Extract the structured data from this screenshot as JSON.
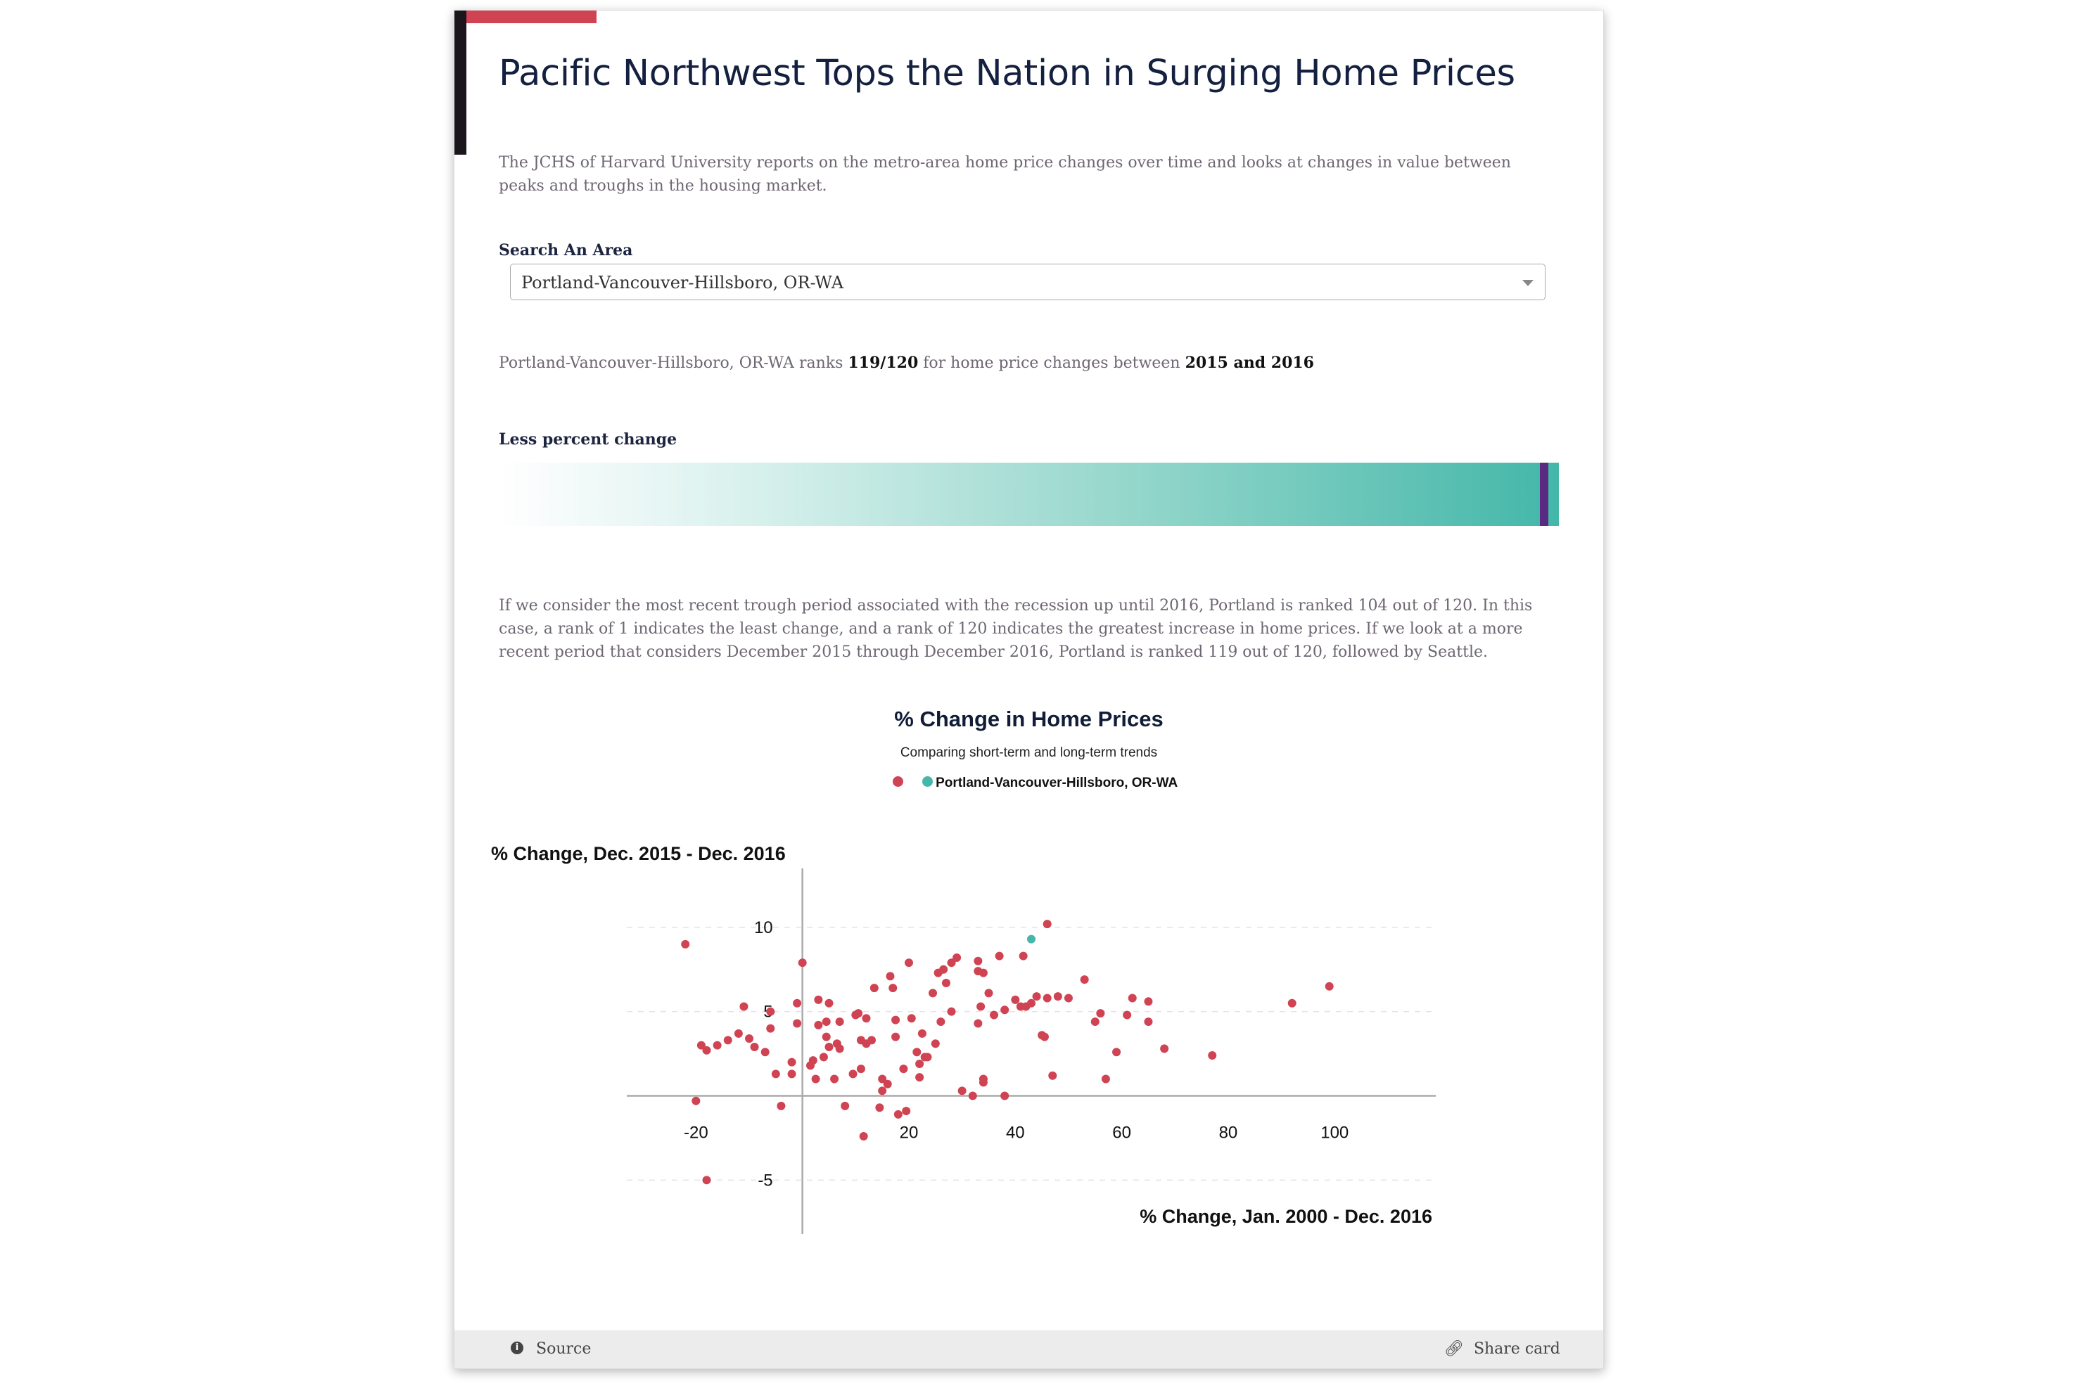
{
  "card": {
    "title": "Pacific Northwest Tops the Nation in Surging Home Prices",
    "intro": "The JCHS of Harvard University reports on the metro-area home price changes over time and looks at changes in value between peaks and troughs in the housing market."
  },
  "search": {
    "label": "Search An Area",
    "selected": "Portland-Vancouver-Hillsboro, OR-WA"
  },
  "rank": {
    "area": "Portland-Vancouver-Hillsboro, OR-WA",
    "ranks_text": "ranks",
    "rank": "119/120",
    "for_text": "for home price changes between",
    "period": "2015 and 2016"
  },
  "bar": {
    "label": "Less percent change",
    "marker_fraction": 0.99,
    "marker_color": "#5a2a82"
  },
  "body_text": "If we consider the most recent trough period associated with the recession up until 2016, Portland is ranked 104 out of 120. In this case, a rank of 1 indicates the least change, and a rank of 120 indicates the greatest increase in home prices. If we look at a more recent period that considers December 2015 through December 2016, Portland is ranked 119 out of 120, followed by Seattle.",
  "chart_data": {
    "type": "scatter",
    "title": "% Change in Home Prices",
    "subtitle": "Comparing short-term and long-term trends",
    "xlabel": "% Change, Jan. 2000 - Dec. 2016",
    "ylabel": "% Change, Dec. 2015 - Dec. 2016",
    "xlim": [
      -33,
      119
    ],
    "ylim": [
      -8.2,
      13.5
    ],
    "x_ticks": [
      -20,
      20,
      40,
      60,
      80,
      100
    ],
    "y_ticks": [
      -5,
      5,
      10
    ],
    "grid": "horizontal dashed",
    "legend_position": "top-center",
    "series": [
      {
        "name": "",
        "color": "#d04352",
        "points": [
          [
            -22,
            9
          ],
          [
            -20,
            -0.3
          ],
          [
            -18,
            -5
          ],
          [
            -19,
            3
          ],
          [
            -18,
            2.7
          ],
          [
            -16,
            3
          ],
          [
            -14,
            3.3
          ],
          [
            -12,
            3.7
          ],
          [
            -11,
            5.3
          ],
          [
            -10,
            3.4
          ],
          [
            -9,
            2.9
          ],
          [
            -7,
            2.6
          ],
          [
            -6,
            4
          ],
          [
            -6,
            5
          ],
          [
            -5,
            1.3
          ],
          [
            -4,
            -0.6
          ],
          [
            -2,
            2
          ],
          [
            -2,
            1.3
          ],
          [
            -1,
            5.5
          ],
          [
            -1,
            4.3
          ],
          [
            0,
            7.9
          ],
          [
            1.5,
            1.8
          ],
          [
            2,
            2.1
          ],
          [
            2.5,
            1
          ],
          [
            3,
            4.2
          ],
          [
            3,
            5.7
          ],
          [
            4,
            2.3
          ],
          [
            4.5,
            3.5
          ],
          [
            4.5,
            4.4
          ],
          [
            5,
            2.9
          ],
          [
            5,
            5.5
          ],
          [
            6,
            1
          ],
          [
            6.5,
            3.1
          ],
          [
            7,
            2.8
          ],
          [
            7,
            4.4
          ],
          [
            8,
            -0.6
          ],
          [
            9.5,
            1.3
          ],
          [
            10,
            4.8
          ],
          [
            10.5,
            4.9
          ],
          [
            11,
            3.3
          ],
          [
            11,
            1.6
          ],
          [
            11.5,
            -2.4
          ],
          [
            12,
            3.1
          ],
          [
            12,
            4.6
          ],
          [
            13,
            3.3
          ],
          [
            13.5,
            6.4
          ],
          [
            14.5,
            -0.7
          ],
          [
            15,
            1
          ],
          [
            15,
            0.3
          ],
          [
            16,
            0.7
          ],
          [
            16.5,
            7.1
          ],
          [
            17,
            6.4
          ],
          [
            17.5,
            4.5
          ],
          [
            17.5,
            3.5
          ],
          [
            18,
            -1.1
          ],
          [
            19,
            1.6
          ],
          [
            19.5,
            -0.9
          ],
          [
            20,
            7.9
          ],
          [
            20.5,
            4.6
          ],
          [
            21.5,
            2.6
          ],
          [
            22,
            1.9
          ],
          [
            23,
            2.3
          ],
          [
            22.5,
            3.7
          ],
          [
            22,
            1.1
          ],
          [
            23.5,
            2.3
          ],
          [
            24.5,
            6.1
          ],
          [
            25,
            3.1
          ],
          [
            25.5,
            7.3
          ],
          [
            26,
            4.4
          ],
          [
            26.5,
            7.5
          ],
          [
            27,
            6.7
          ],
          [
            28,
            5
          ],
          [
            28,
            7.9
          ],
          [
            29,
            8.2
          ],
          [
            30,
            0.3
          ],
          [
            32,
            0
          ],
          [
            33,
            4.3
          ],
          [
            33,
            8
          ],
          [
            33,
            7.4
          ],
          [
            33.5,
            5.3
          ],
          [
            34,
            1
          ],
          [
            34,
            0.8
          ],
          [
            34,
            7.3
          ],
          [
            35,
            6.1
          ],
          [
            36,
            4.8
          ],
          [
            37,
            8.3
          ],
          [
            38,
            0
          ],
          [
            38,
            5.1
          ],
          [
            40,
            5.7
          ],
          [
            41,
            5.3
          ],
          [
            41.5,
            8.3
          ],
          [
            42,
            5.3
          ],
          [
            43,
            5.5
          ],
          [
            44,
            5.9
          ],
          [
            45,
            3.6
          ],
          [
            45.5,
            3.5
          ],
          [
            46,
            5.8
          ],
          [
            47,
            1.2
          ],
          [
            48,
            5.9
          ],
          [
            50,
            5.8
          ],
          [
            53,
            6.9
          ],
          [
            55,
            4.4
          ],
          [
            56,
            4.9
          ],
          [
            57,
            1
          ],
          [
            59,
            2.6
          ],
          [
            61,
            4.8
          ],
          [
            62,
            5.8
          ],
          [
            65,
            5.6
          ],
          [
            65,
            4.4
          ],
          [
            68,
            2.8
          ],
          [
            77,
            2.4
          ],
          [
            92,
            5.5
          ],
          [
            99,
            6.5
          ],
          [
            46,
            10.2
          ]
        ]
      },
      {
        "name": "Portland-Vancouver-Hillsboro, OR-WA",
        "color": "#43b7a9",
        "points": [
          [
            43,
            9.3
          ]
        ]
      }
    ]
  },
  "footer": {
    "source": "Source",
    "share": "Share card"
  }
}
